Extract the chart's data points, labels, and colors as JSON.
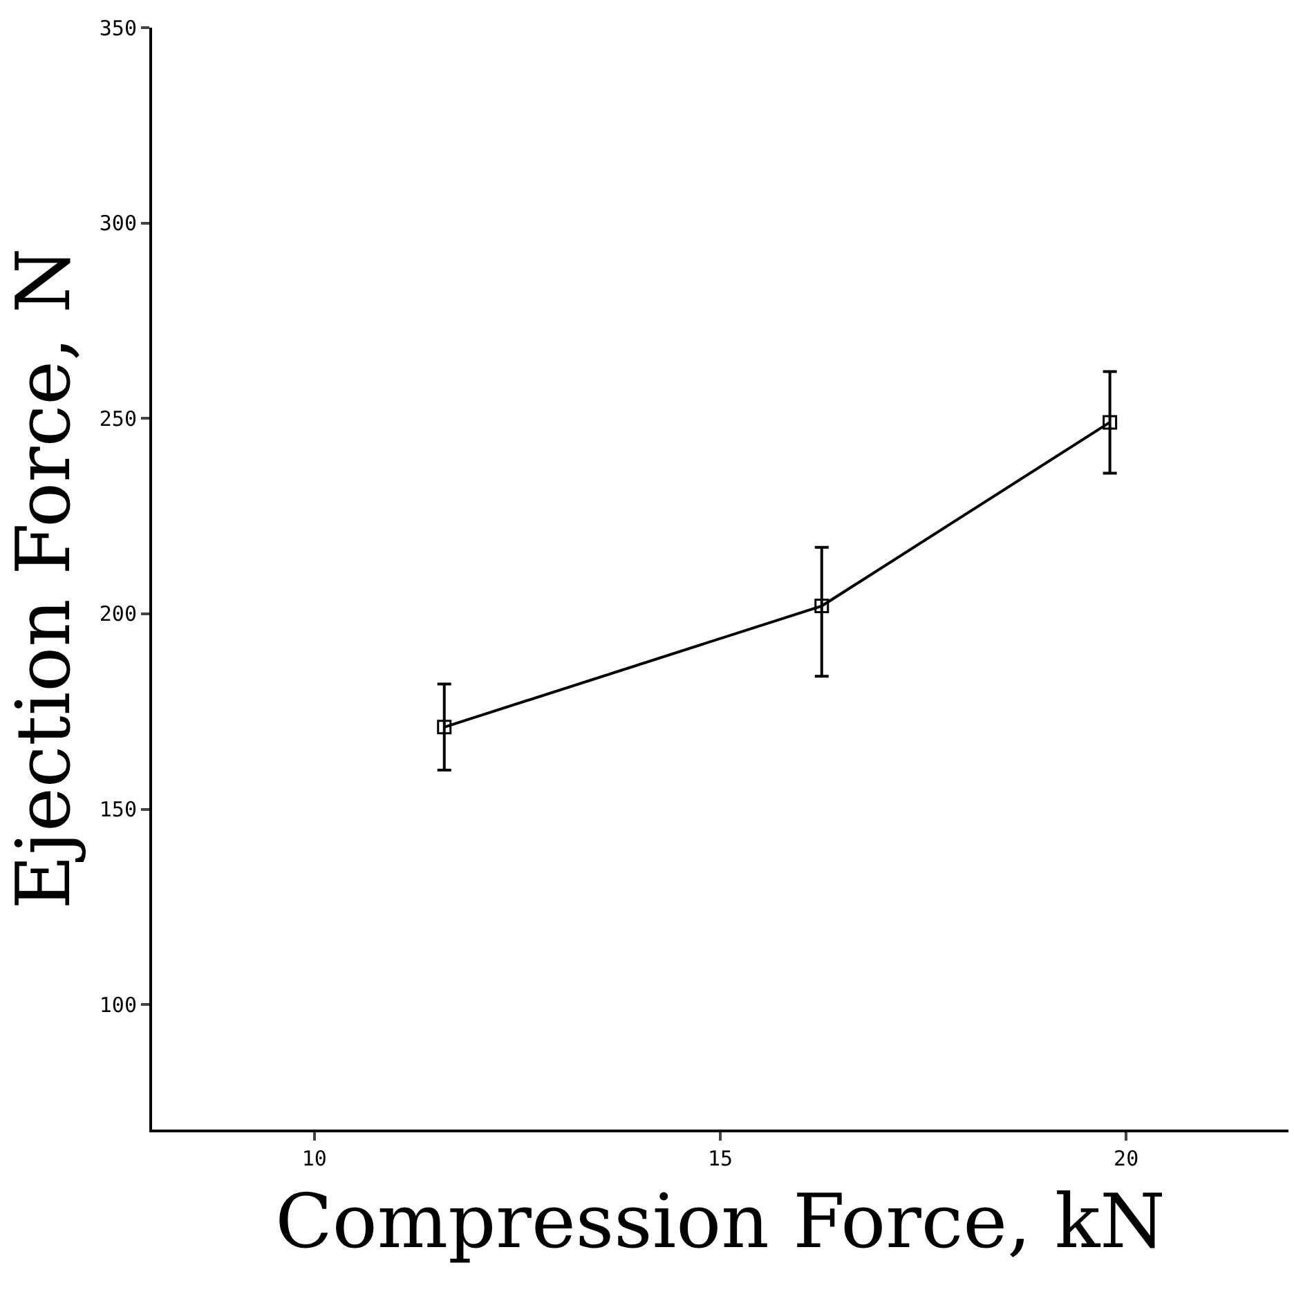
{
  "chart_data": {
    "type": "line",
    "xlabel": "Compression Force, kN",
    "ylabel": "Ejection Force, N",
    "x": [
      11.6,
      16.25,
      19.8
    ],
    "series": [
      {
        "color": "#000000",
        "values": [
          171,
          202,
          249
        ],
        "errors": [
          [
            160,
            182
          ],
          [
            184,
            217
          ],
          [
            236,
            262
          ]
        ]
      }
    ],
    "xlim": [
      8,
      22
    ],
    "xticks": [
      10,
      15,
      20
    ],
    "ylim": [
      68,
      350
    ],
    "yticks": [
      100,
      150,
      200,
      250,
      300,
      350
    ],
    "grid": false,
    "marker": "square",
    "line_style": "solid"
  }
}
